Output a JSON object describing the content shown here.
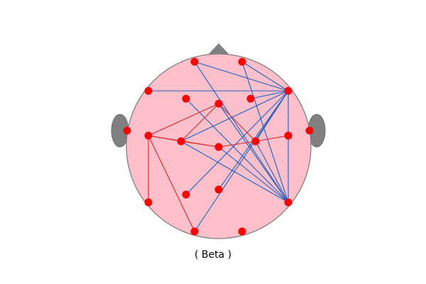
{
  "caption": "( Beta )",
  "colors": {
    "head_fill": "#ffc0cb",
    "head_outline": "#808080",
    "ears_nose": "#808080",
    "electrode": "#ff0000",
    "edge_positive": "#d62728",
    "edge_negative": "#1f5fbf"
  },
  "electrodes": [
    {
      "id": "e1"
    },
    {
      "id": "e2"
    },
    {
      "id": "e3"
    },
    {
      "id": "e4"
    },
    {
      "id": "e5"
    },
    {
      "id": "e6"
    },
    {
      "id": "e7"
    },
    {
      "id": "e8"
    },
    {
      "id": "e9"
    },
    {
      "id": "e10"
    },
    {
      "id": "e11"
    },
    {
      "id": "e12"
    },
    {
      "id": "e13"
    },
    {
      "id": "e14"
    },
    {
      "id": "e15"
    },
    {
      "id": "e16"
    },
    {
      "id": "e17"
    },
    {
      "id": "e18"
    },
    {
      "id": "e19"
    },
    {
      "id": "e20"
    },
    {
      "id": "e21"
    }
  ],
  "connections": {
    "positive": [
      [
        "e11",
        "e6"
      ],
      [
        "e11",
        "e12"
      ],
      [
        "e11",
        "e13"
      ],
      [
        "e11",
        "e19"
      ],
      [
        "e11",
        "e20"
      ],
      [
        "e6",
        "e12"
      ],
      [
        "e6",
        "e14"
      ],
      [
        "e12",
        "e13"
      ],
      [
        "e13",
        "e14"
      ],
      [
        "e14",
        "e15"
      ]
    ],
    "negative": [
      [
        "e1",
        "e5"
      ],
      [
        "e1",
        "e18"
      ],
      [
        "e2",
        "e5"
      ],
      [
        "e2",
        "e18"
      ],
      [
        "e3",
        "e5"
      ],
      [
        "e4",
        "e18"
      ],
      [
        "e7",
        "e5"
      ],
      [
        "e5",
        "e12"
      ],
      [
        "e5",
        "e14"
      ],
      [
        "e5",
        "e16"
      ],
      [
        "e5",
        "e17"
      ],
      [
        "e5",
        "e20"
      ],
      [
        "e5",
        "e18"
      ],
      [
        "e12",
        "e18"
      ],
      [
        "e13",
        "e18"
      ],
      [
        "e14",
        "e18"
      ],
      [
        "e6",
        "e18"
      ]
    ]
  }
}
